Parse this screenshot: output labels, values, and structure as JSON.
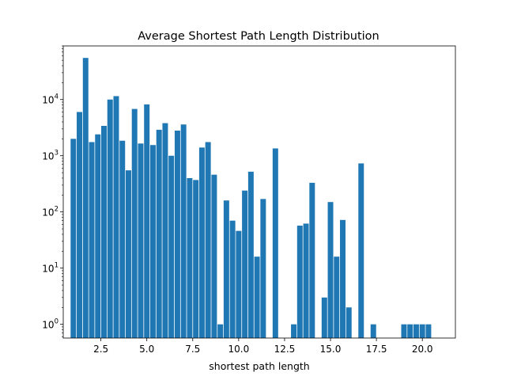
{
  "chart_data": {
    "type": "bar",
    "title": "Average Shortest Path Length Distribution",
    "xlabel": "shortest path length",
    "ylabel": "",
    "yscale": "log",
    "xlim": [
      0.45,
      21.8
    ],
    "ylim": [
      0.57,
      90000
    ],
    "bar_width": 0.3,
    "grid": false,
    "legend": "none",
    "color": "#1f77b4",
    "x_ticks": [
      2.5,
      5.0,
      7.5,
      10.0,
      12.5,
      15.0,
      17.5,
      20.0
    ],
    "x_tick_labels": [
      "2.5",
      "5.0",
      "7.5",
      "10.0",
      "12.5",
      "15.0",
      "17.5",
      "20.0"
    ],
    "y_ticks": [
      1,
      10,
      100,
      1000,
      10000
    ],
    "y_tick_exponents": [
      "0",
      "1",
      "2",
      "3",
      "4"
    ],
    "y_tick_base": "10",
    "x": [
      1.0,
      1.333,
      1.667,
      2.0,
      2.333,
      2.667,
      3.0,
      3.333,
      3.667,
      4.0,
      4.333,
      4.667,
      5.0,
      5.333,
      5.667,
      6.0,
      6.333,
      6.667,
      7.0,
      7.333,
      7.667,
      8.0,
      8.333,
      8.667,
      9.0,
      9.333,
      9.667,
      10.0,
      10.333,
      10.667,
      11.0,
      11.333,
      12.0,
      13.0,
      13.333,
      13.667,
      14.0,
      14.667,
      15.0,
      15.333,
      15.667,
      16.0,
      16.667,
      17.333,
      19.0,
      19.333,
      19.667,
      20.0,
      20.333
    ],
    "values": [
      2000,
      6000,
      55000,
      1750,
      2400,
      3400,
      10000,
      11500,
      1850,
      550,
      6800,
      1650,
      8200,
      1550,
      2900,
      3800,
      1000,
      2800,
      3600,
      400,
      370,
      1400,
      1750,
      460,
      1,
      160,
      70,
      46,
      240,
      520,
      16,
      170,
      1350,
      1,
      57,
      62,
      330,
      3,
      150,
      16,
      72,
      2,
      730,
      1,
      1,
      1,
      1,
      1,
      1
    ]
  }
}
